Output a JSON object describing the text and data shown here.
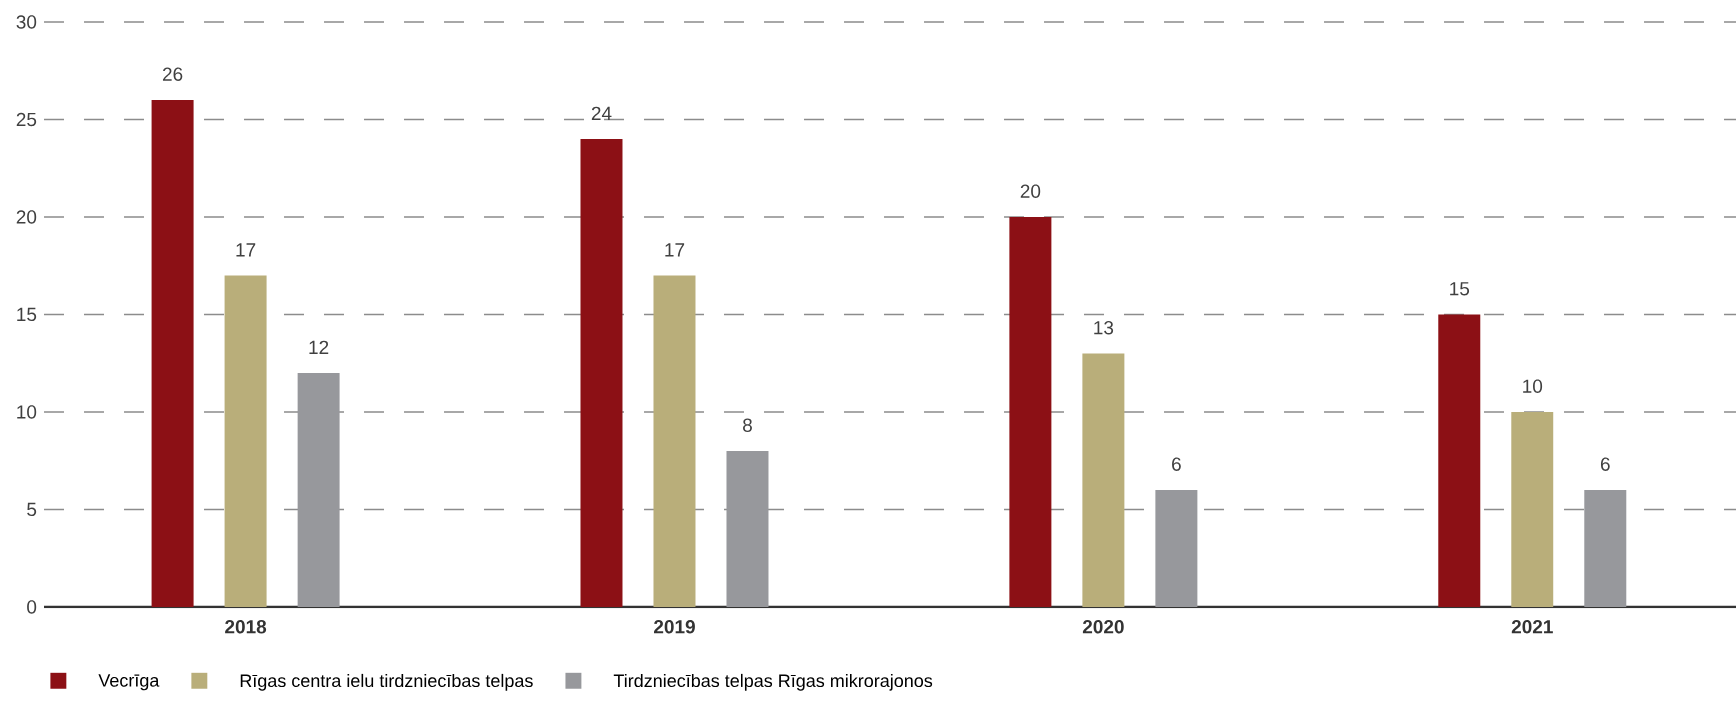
{
  "chart_data": {
    "type": "bar",
    "categories": [
      "2018",
      "2019",
      "2020",
      "2021"
    ],
    "series": [
      {
        "name": "Vecrīga",
        "color": "#8c1015",
        "values": [
          26,
          24,
          20,
          15
        ]
      },
      {
        "name": "Rīgas centra ielu tirdzniecības telpas",
        "color": "#b9ae7a",
        "values": [
          17,
          17,
          13,
          10
        ]
      },
      {
        "name": "Tirdzniecības telpas Rīgas mikrorajonos",
        "color": "#97989c",
        "values": [
          12,
          8,
          6,
          6
        ]
      }
    ],
    "ylim": [
      0,
      30
    ],
    "yticks": [
      0,
      5,
      10,
      15,
      20,
      25,
      30
    ],
    "grid": "y",
    "legend": "bottom left",
    "data_labels": true
  }
}
